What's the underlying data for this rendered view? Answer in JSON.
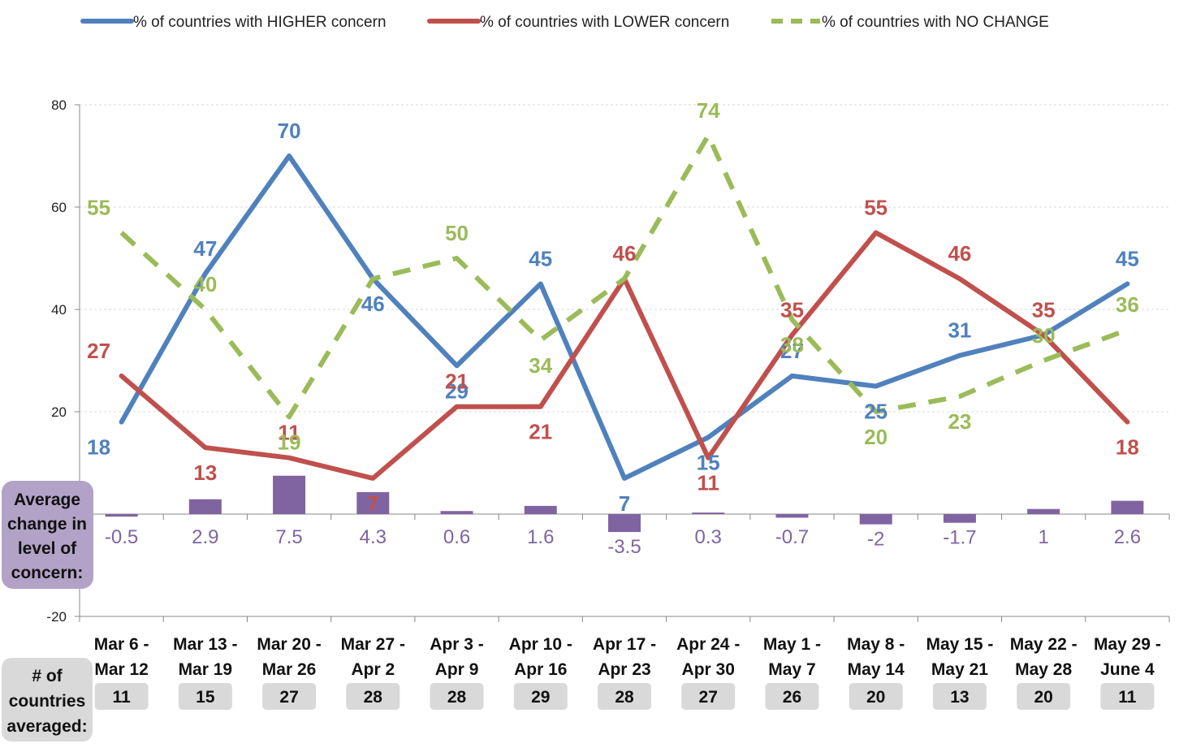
{
  "chart_data": {
    "type": "line",
    "categories": [
      [
        "Mar 6 -",
        "Mar 12"
      ],
      [
        "Mar 13 -",
        "Mar 19"
      ],
      [
        "Mar 20 -",
        "Mar 26"
      ],
      [
        "Mar 27 -",
        "Apr 2"
      ],
      [
        "Apr 3 -",
        "Apr 9"
      ],
      [
        "Apr 10 -",
        "Apr 16"
      ],
      [
        "Apr 17 -",
        "Apr 23"
      ],
      [
        "Apr 24 -",
        "Apr 30"
      ],
      [
        "May 1 -",
        "May 7"
      ],
      [
        "May 8 -",
        "May 14"
      ],
      [
        "May 15 -",
        "May 21"
      ],
      [
        "May 22 -",
        "May 28"
      ],
      [
        "May 29 -",
        "June 4"
      ]
    ],
    "ylim": [
      -20,
      80
    ],
    "yticks": [
      80,
      60,
      40,
      20,
      -20
    ],
    "grid": true,
    "legend_position": "top",
    "series": [
      {
        "name": "% of countries with HIGHER concern",
        "color": "#4F81BD",
        "style": "solid",
        "values": [
          18,
          47,
          70,
          46,
          29,
          45,
          7,
          15,
          27,
          25,
          31,
          35,
          45
        ],
        "labels": [
          "18",
          "47",
          "70",
          "46",
          "29",
          "45",
          "7",
          "15",
          "27",
          "25",
          "31",
          "",
          "45"
        ]
      },
      {
        "name": "% of countries with LOWER concern",
        "color": "#C0504D",
        "style": "solid",
        "values": [
          27,
          13,
          11,
          7,
          21,
          21,
          46,
          11,
          35,
          55,
          46,
          35,
          18
        ],
        "labels": [
          "27",
          "13",
          "11",
          "7",
          "21",
          "21",
          "46",
          "11",
          "35",
          "55",
          "46",
          "35",
          "18"
        ]
      },
      {
        "name": "% of countries with NO CHANGE",
        "color": "#9BBB59",
        "style": "dashed",
        "values": [
          55,
          40,
          19,
          46,
          50,
          34,
          46,
          74,
          38,
          20,
          23,
          30,
          36
        ],
        "labels": [
          "55",
          "40",
          "19",
          "",
          "50",
          "34",
          "",
          "74",
          "38",
          "20",
          "23",
          "30",
          "36"
        ]
      }
    ],
    "bars": {
      "name": "Average change in level of concern:",
      "color": "#8064A2",
      "values": [
        -0.5,
        2.9,
        7.5,
        4.3,
        0.6,
        1.6,
        -3.5,
        0.3,
        -0.7,
        -2,
        -1.7,
        1,
        2.6
      ],
      "labels": [
        "-0.5",
        "2.9",
        "7.5",
        "4.3",
        "0.6",
        "1.6",
        "-3.5",
        "0.3",
        "-0.7",
        "-2",
        "-1.7",
        "1",
        "2.6"
      ]
    },
    "side_label": [
      "Average",
      "change in",
      "level of",
      "concern:"
    ],
    "count_label": [
      "# of",
      "countries",
      "averaged:"
    ],
    "counts": [
      "11",
      "15",
      "27",
      "28",
      "28",
      "29",
      "28",
      "27",
      "26",
      "20",
      "13",
      "20",
      "11"
    ]
  }
}
